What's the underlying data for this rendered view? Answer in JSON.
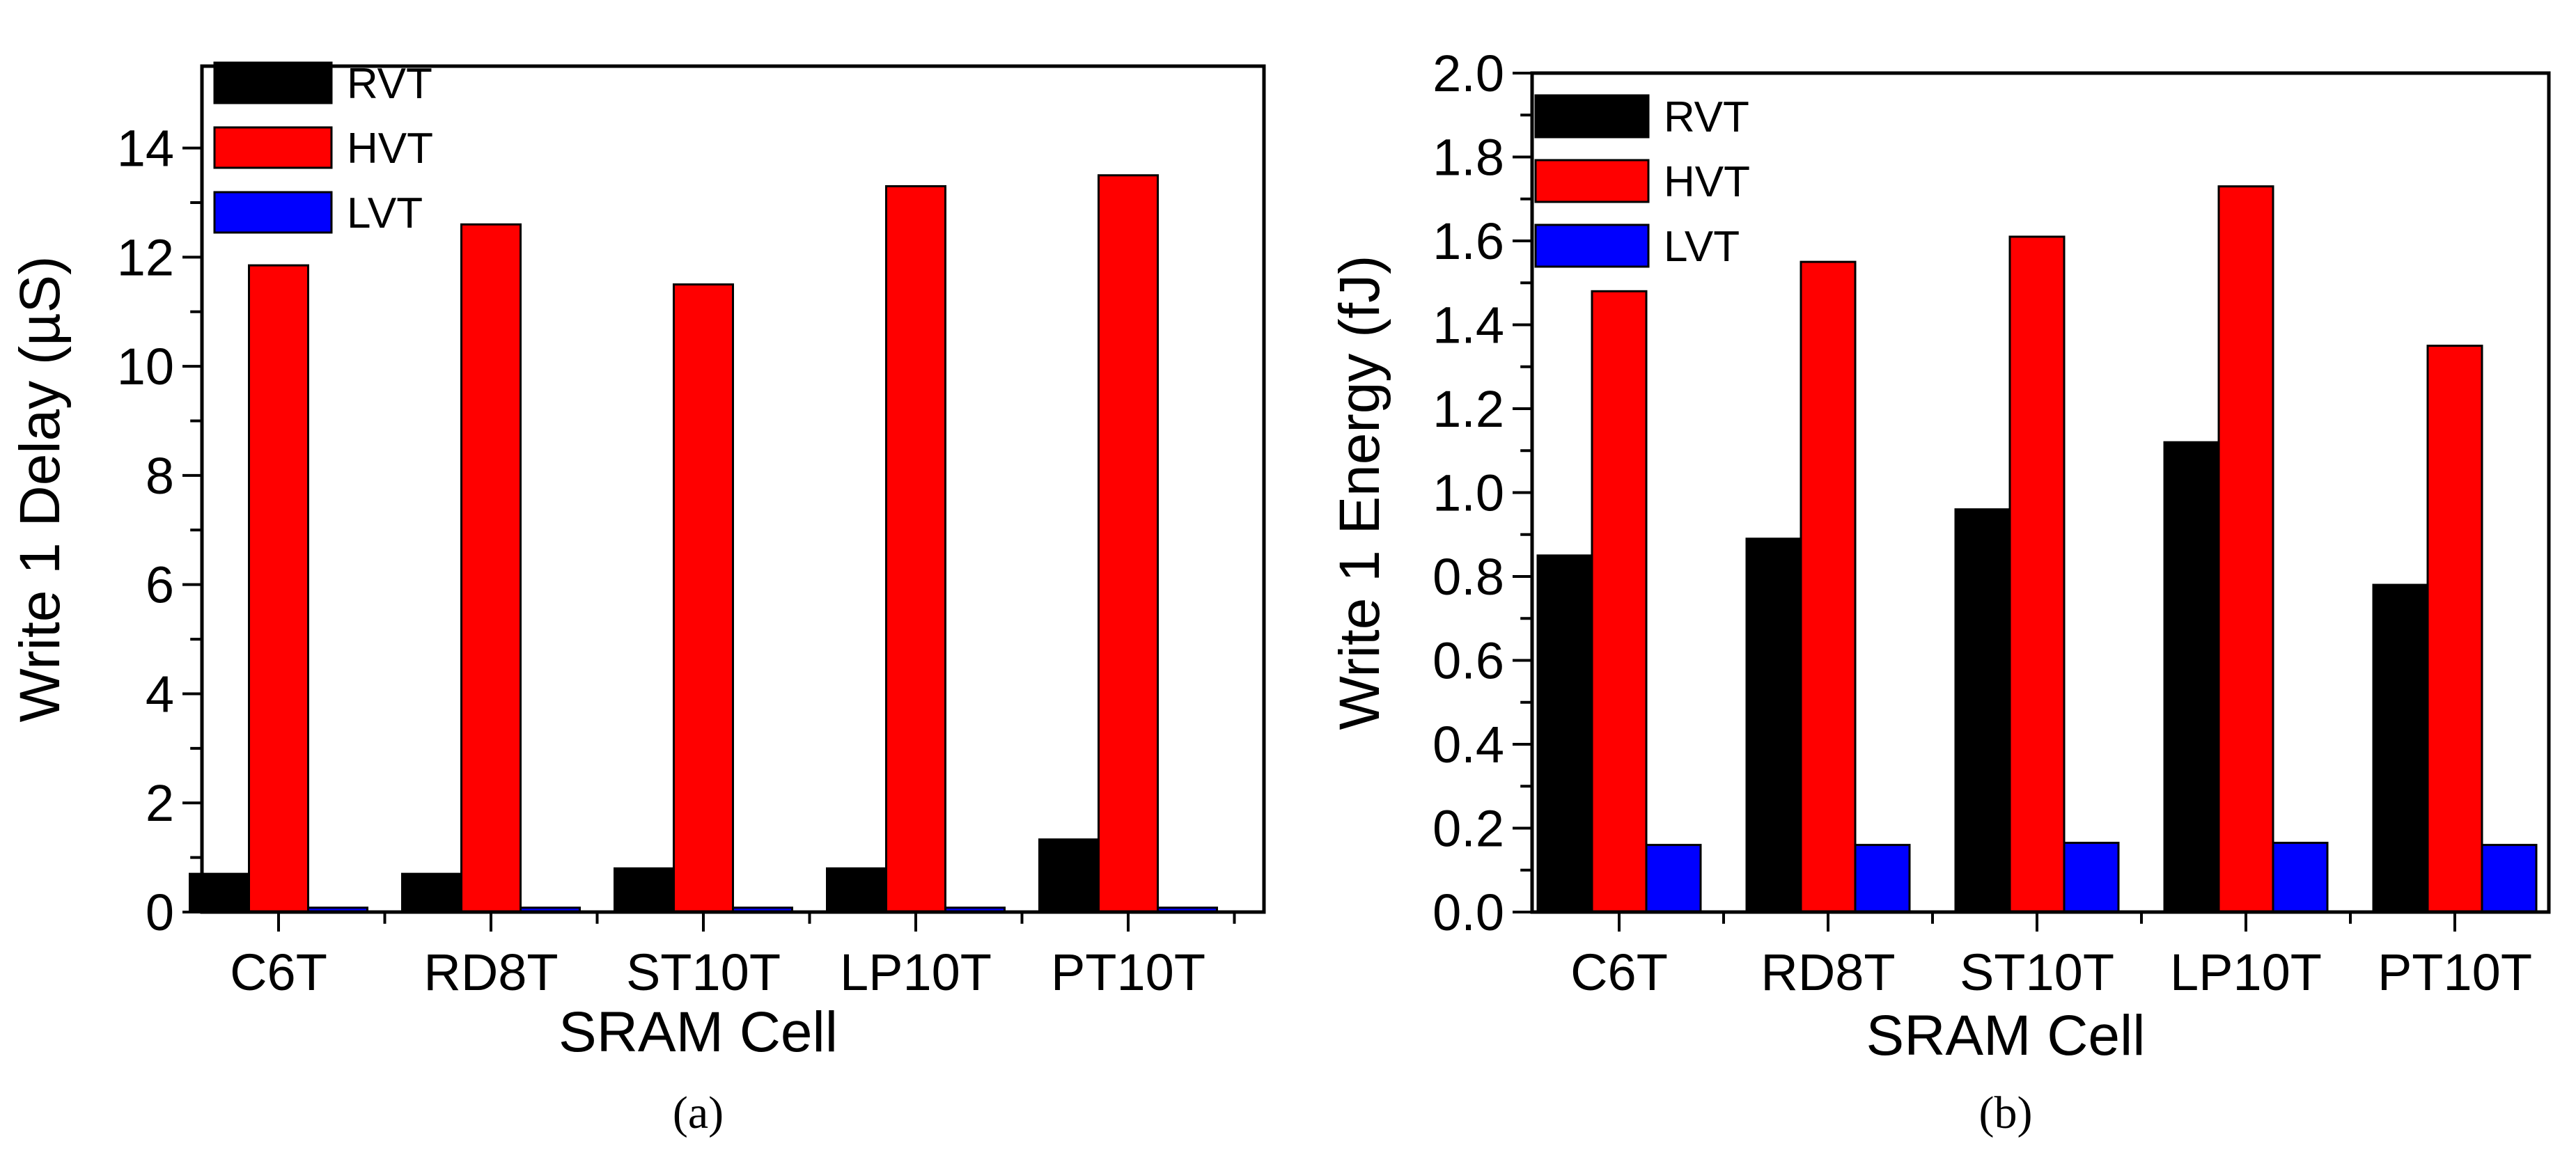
{
  "chart_data": [
    {
      "type": "bar",
      "panel_label": "(a)",
      "categories": [
        "C6T",
        "RD8T",
        "ST10T",
        "LP10T",
        "PT10T"
      ],
      "series": [
        {
          "name": "RVT",
          "color": "#000000",
          "values": [
            0.7,
            0.7,
            0.8,
            0.8,
            1.33
          ]
        },
        {
          "name": "HVT",
          "color": "#ff0000",
          "values": [
            11.85,
            12.6,
            11.5,
            13.3,
            13.5
          ]
        },
        {
          "name": "LVT",
          "color": "#0000ff",
          "values": [
            0.08,
            0.08,
            0.08,
            0.08,
            0.08
          ]
        }
      ],
      "xlabel": "SRAM Cell",
      "ylabel": "Write 1 Delay (µS)",
      "ylim": [
        0,
        15.5
      ],
      "yticks": [
        0,
        2,
        4,
        6,
        8,
        10,
        12,
        14
      ],
      "ytick_labels": [
        "0",
        "2",
        "4",
        "6",
        "8",
        "10",
        "12",
        "14"
      ],
      "legend": "top-left",
      "grid": false
    },
    {
      "type": "bar",
      "panel_label": "(b)",
      "categories": [
        "C6T",
        "RD8T",
        "ST10T",
        "LP10T",
        "PT10T"
      ],
      "series": [
        {
          "name": "RVT",
          "color": "#000000",
          "values": [
            0.85,
            0.89,
            0.96,
            1.12,
            0.78
          ]
        },
        {
          "name": "HVT",
          "color": "#ff0000",
          "values": [
            1.48,
            1.55,
            1.61,
            1.73,
            1.35
          ]
        },
        {
          "name": "LVT",
          "color": "#0000ff",
          "values": [
            0.16,
            0.16,
            0.165,
            0.165,
            0.16
          ]
        }
      ],
      "xlabel": "SRAM Cell",
      "ylabel": "Write 1 Energy (fJ)",
      "ylim": [
        0,
        2.0
      ],
      "yticks": [
        0,
        0.2,
        0.4,
        0.6,
        0.8,
        1.0,
        1.2,
        1.4,
        1.6,
        1.8,
        2.0
      ],
      "ytick_labels": [
        "0.0",
        "0.2",
        "0.4",
        "0.6",
        "0.8",
        "1.0",
        "1.2",
        "1.4",
        "1.6",
        "1.8",
        "2.0"
      ],
      "legend": "top-left",
      "grid": false
    }
  ]
}
